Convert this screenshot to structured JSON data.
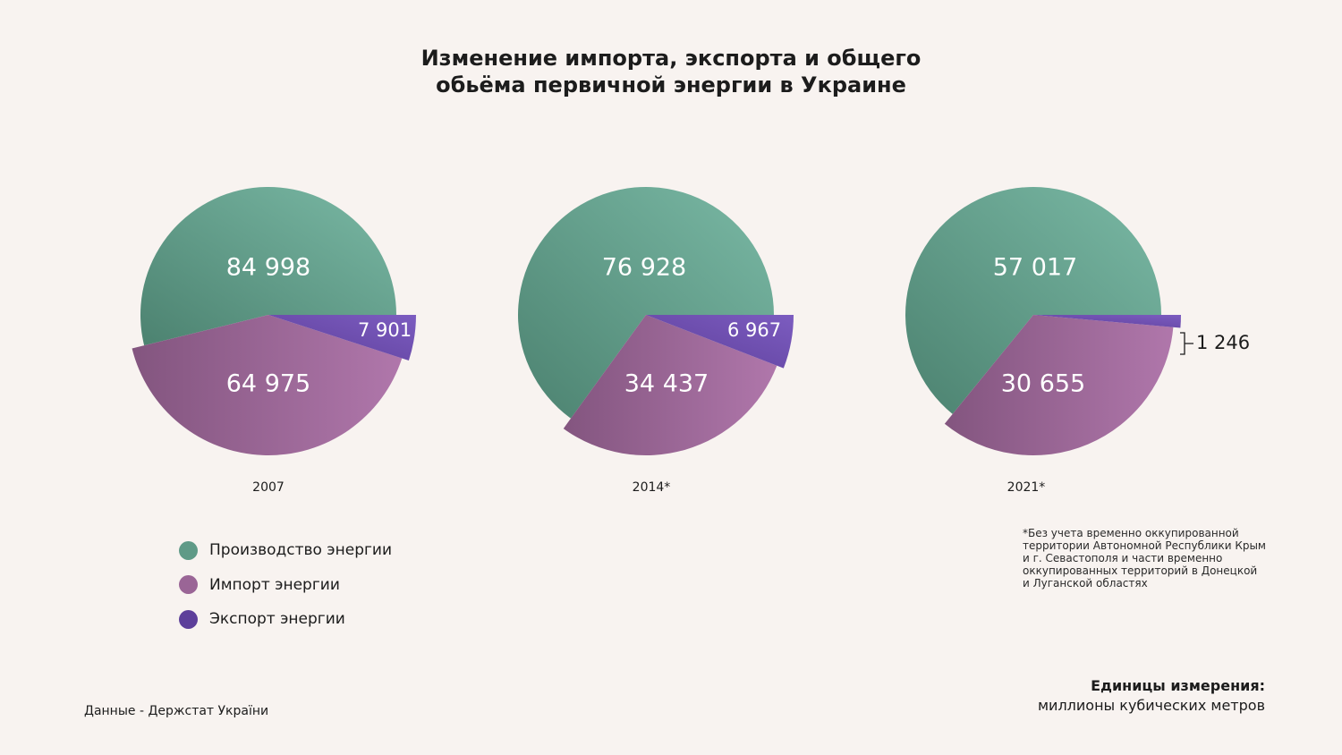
{
  "title_lines": [
    "Изменение импорта, экспорта и общего",
    "обьёма первичной энергии в Украине"
  ],
  "colors": {
    "background": "#f8f3f0",
    "production": "#5f9a87",
    "production_light": "#7ab9a5",
    "production_dark": "#4c8270",
    "import": "#9a6596",
    "import_light": "#b077ab",
    "import_dark": "#83557f",
    "export": "#5d3f9a",
    "export_light": "#7c5cc0"
  },
  "legend": [
    {
      "label": "Производство энергии",
      "color": "#5f9a87"
    },
    {
      "label": "Импорт энергии",
      "color": "#9a6596"
    },
    {
      "label": "Экспорт энергии",
      "color": "#5d3f9a"
    }
  ],
  "chart_data": {
    "type": "pie",
    "title": "Изменение импорта, экспорта и общего обьёма первичной энергии в Украине",
    "series_names": [
      "Производство энергии",
      "Импорт энергии",
      "Экспорт энергии"
    ],
    "charts": [
      {
        "year_label": "2007",
        "values": [
          84998,
          64975,
          7901
        ],
        "value_labels": [
          "84 998",
          "64 975",
          "7 901"
        ]
      },
      {
        "year_label": "2014*",
        "values": [
          76928,
          34437,
          6967
        ],
        "value_labels": [
          "76 928",
          "34 437",
          "6 967"
        ]
      },
      {
        "year_label": "2021*",
        "values": [
          57017,
          30655,
          1246
        ],
        "value_labels": [
          "57 017",
          "30 655",
          "1 246"
        ]
      }
    ]
  },
  "footnote_lines": [
    "*Без учета временно оккупированной",
    "территории Автономной Республики Крым",
    "и г. Севастополя и части временно",
    "оккупированных территорий в Донецкой",
    "и Луганской областях"
  ],
  "units": {
    "title": "Единицы измерения:",
    "value": "миллионы кубических метров"
  },
  "source": "Данные - Держстат України"
}
